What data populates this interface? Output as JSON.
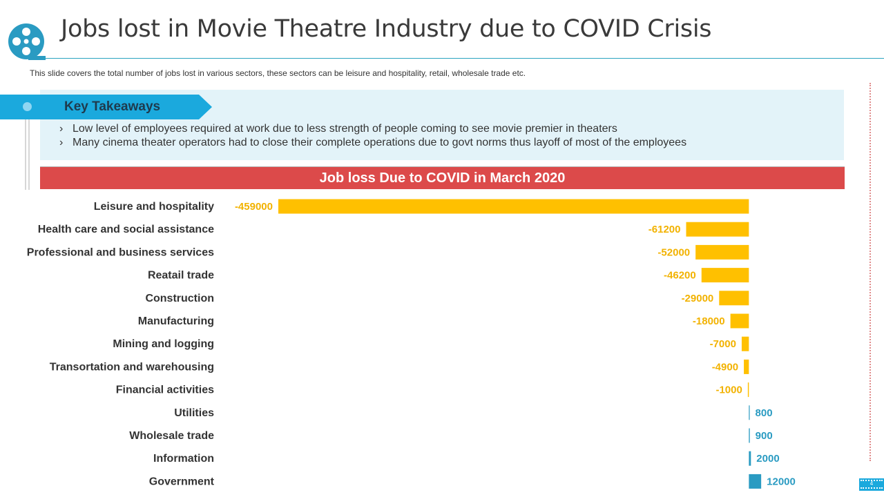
{
  "header": {
    "title": "Jobs lost in Movie Theatre Industry due to COVID Crisis",
    "subtitle": "This slide covers the total number of jobs lost in various sectors, these sectors can be leisure and hospitality, retail, wholesale trade etc."
  },
  "takeaways": {
    "heading": "Key Takeaways",
    "bullet_glyph": "›",
    "items": [
      "Low level of employees required at work due to less strength of people coming to see movie premier in theaters",
      "Many cinema theater operators had to close their complete operations due to govt norms thus layoff of most of the employees"
    ]
  },
  "chart_data": {
    "type": "bar",
    "orientation": "horizontal",
    "title": "Job loss Due to COVID in March 2020",
    "categories": [
      "Leisure and hospitality",
      "Health care and social assistance",
      "Professional and business services",
      "Reatail trade",
      "Construction",
      "Manufacturing",
      "Mining and logging",
      "Transortation and warehousing",
      "Financial activities",
      "Utilities",
      "Wholesale trade",
      "Information",
      "Government"
    ],
    "values": [
      -459000,
      -61200,
      -52000,
      -46200,
      -29000,
      -18000,
      -7000,
      -4900,
      -1000,
      800,
      900,
      2000,
      12000
    ],
    "xlim": [
      -459000,
      86000
    ],
    "xlabel": "",
    "ylabel": "",
    "grid": false,
    "legend": "none",
    "colors": {
      "negative": "#FFC000",
      "positive": "#2A9BC2"
    }
  },
  "footer": {
    "page_number": "4"
  },
  "colors": {
    "accent": "#1BA9DD",
    "title_rule": "#29A3C0",
    "chart_header": "#DC4A4A",
    "takeaway_bg": "#E3F3F9"
  }
}
